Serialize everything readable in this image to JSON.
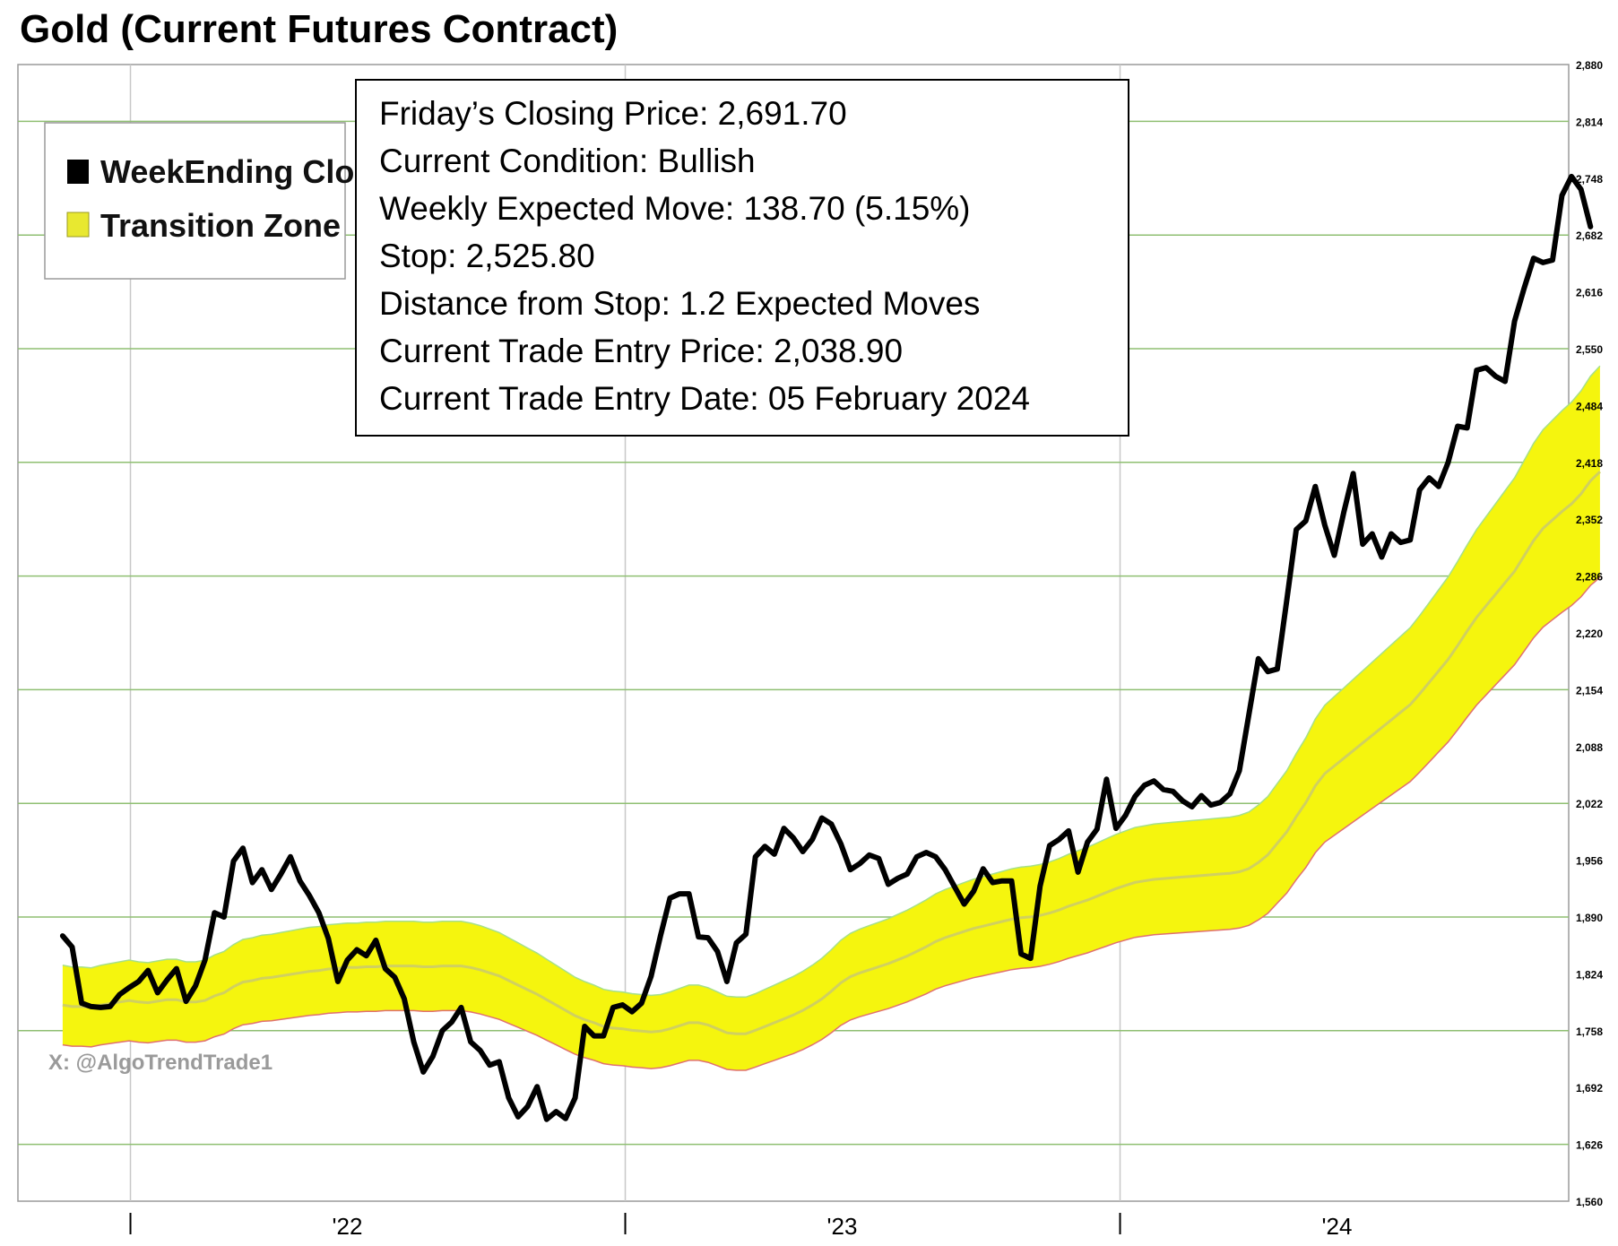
{
  "title": "Gold (Current Futures Contract)",
  "watermark": "X: @AlgoTrendTrade1",
  "legend": [
    {
      "label": "WeekEnding Close",
      "color": "#000000"
    },
    {
      "label": "Transition Zone",
      "color": "#e8e830"
    }
  ],
  "info_box": [
    "Friday’s Closing Price: 2,691.70",
    "Current Condition: Bullish",
    "Weekly Expected Move: 138.70 (5.15%)",
    "Stop: 2,525.80",
    "Distance from Stop: 1.2 Expected Moves",
    "Current Trade Entry Price: 2,038.90",
    "Current Trade Entry Date: 05 February 2024"
  ],
  "colors": {
    "zone_fill": "#f5f50e",
    "zone_upper_edge": "#a6e08a",
    "zone_lower_edge": "#e07070",
    "zone_mid": "#d0d060",
    "grid_h": "#8fbf72",
    "grid_v": "#c8c8c8",
    "close_line": "#000000"
  },
  "chart_data": {
    "type": "line",
    "title": "Gold (Current Futures Contract)",
    "xlabel": "",
    "ylabel": "",
    "x_tick_labels": [
      "'22",
      "'23",
      "'24"
    ],
    "y_tick_labels": [
      "2,880",
      "2,814",
      "2,748",
      "2,682",
      "2,616",
      "2,550",
      "2,484",
      "2,418",
      "2,352",
      "2,286",
      "2,220",
      "2,154",
      "2,088",
      "2,022",
      "1,956",
      "1,890",
      "1,824",
      "1,758",
      "1,692",
      "1,626",
      "1,560"
    ],
    "ylim": [
      1560,
      2880
    ],
    "grid": true,
    "legend_position": "top-left",
    "series": [
      {
        "name": "WeekEnding Close",
        "x_start": "2021-11-12",
        "x_step_days": 7,
        "values": [
          1868,
          1855,
          1790,
          1786,
          1785,
          1786,
          1800,
          1808,
          1815,
          1828,
          1802,
          1817,
          1830,
          1792,
          1810,
          1840,
          1895,
          1890,
          1955,
          1970,
          1930,
          1945,
          1922,
          1940,
          1960,
          1932,
          1915,
          1895,
          1865,
          1815,
          1840,
          1852,
          1845,
          1863,
          1830,
          1820,
          1795,
          1745,
          1710,
          1728,
          1758,
          1768,
          1785,
          1745,
          1735,
          1718,
          1722,
          1680,
          1658,
          1670,
          1693,
          1655,
          1664,
          1656,
          1680,
          1763,
          1752,
          1752,
          1785,
          1788,
          1780,
          1790,
          1821,
          1868,
          1912,
          1917,
          1917,
          1867,
          1866,
          1850,
          1815,
          1860,
          1870,
          1960,
          1972,
          1963,
          1993,
          1982,
          1966,
          1980,
          2005,
          1998,
          1975,
          1945,
          1952,
          1962,
          1958,
          1928,
          1935,
          1940,
          1960,
          1965,
          1960,
          1945,
          1925,
          1905,
          1920,
          1946,
          1930,
          1932,
          1932,
          1847,
          1842,
          1926,
          1973,
          1980,
          1990,
          1942,
          1977,
          1992,
          2050,
          1993,
          2008,
          2030,
          2043,
          2048,
          2038,
          2036,
          2025,
          2018,
          2031,
          2020,
          2023,
          2033,
          2060,
          2125,
          2190,
          2175,
          2178,
          2258,
          2340,
          2350,
          2390,
          2345,
          2310,
          2360,
          2405,
          2323,
          2335,
          2308,
          2335,
          2325,
          2328,
          2386,
          2400,
          2390,
          2418,
          2460,
          2458,
          2525,
          2528,
          2518,
          2512,
          2582,
          2620,
          2655,
          2650,
          2653,
          2728,
          2750,
          2735,
          2691.7
        ]
      },
      {
        "name": "Transition Zone",
        "x_start": "2021-11-12",
        "x_step_days": 7,
        "upper": [
          1834,
          1832,
          1832,
          1831,
          1834,
          1836,
          1838,
          1840,
          1838,
          1837,
          1839,
          1841,
          1841,
          1838,
          1838,
          1840,
          1846,
          1850,
          1858,
          1864,
          1866,
          1869,
          1870,
          1872,
          1874,
          1876,
          1878,
          1879,
          1881,
          1882,
          1883,
          1883,
          1884,
          1884,
          1885,
          1885,
          1885,
          1885,
          1884,
          1884,
          1885,
          1885,
          1885,
          1883,
          1880,
          1876,
          1872,
          1866,
          1860,
          1854,
          1848,
          1841,
          1834,
          1827,
          1820,
          1815,
          1811,
          1806,
          1804,
          1803,
          1801,
          1800,
          1799,
          1800,
          1803,
          1807,
          1811,
          1811,
          1808,
          1803,
          1798,
          1797,
          1797,
          1801,
          1806,
          1811,
          1816,
          1821,
          1827,
          1834,
          1842,
          1852,
          1863,
          1871,
          1876,
          1880,
          1884,
          1888,
          1893,
          1898,
          1904,
          1910,
          1917,
          1922,
          1926,
          1930,
          1934,
          1937,
          1940,
          1943,
          1946,
          1948,
          1949,
          1951,
          1954,
          1958,
          1963,
          1967,
          1971,
          1976,
          1981,
          1986,
          1990,
          1994,
          1996,
          1998,
          1999,
          2000,
          2001,
          2002,
          2003,
          2004,
          2005,
          2006,
          2008,
          2012,
          2020,
          2030,
          2045,
          2060,
          2080,
          2098,
          2120,
          2136,
          2146,
          2156,
          2166,
          2176,
          2186,
          2196,
          2206,
          2216,
          2226,
          2240,
          2255,
          2270,
          2285,
          2303,
          2322,
          2340,
          2355,
          2370,
          2385,
          2400,
          2420,
          2440,
          2456,
          2467,
          2478,
          2488,
          2501,
          2518,
          2530
        ]
      }
    ]
  }
}
